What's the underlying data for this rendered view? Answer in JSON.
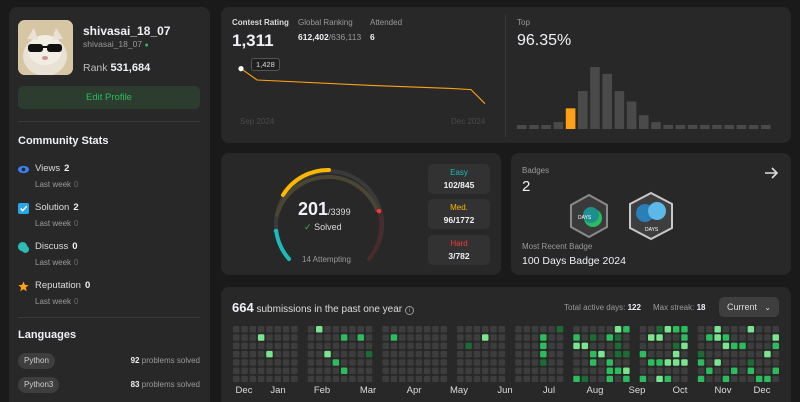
{
  "profile": {
    "username": "shivasai_18_07",
    "handle": "shivasai_18_07",
    "rank_label": "Rank",
    "rank_value": "531,684",
    "edit_label": "Edit Profile"
  },
  "community": {
    "title": "Community Stats",
    "items": [
      {
        "label": "Views",
        "value": "2",
        "sub": "Last week",
        "delta": "0",
        "icon": "eye-icon",
        "color": "#3b82f6"
      },
      {
        "label": "Solution",
        "value": "2",
        "sub": "Last week",
        "delta": "0",
        "icon": "solution-icon",
        "color": "#28a7e8"
      },
      {
        "label": "Discuss",
        "value": "0",
        "sub": "Last week",
        "delta": "0",
        "icon": "discuss-icon",
        "color": "#2cbbb5"
      },
      {
        "label": "Reputation",
        "value": "0",
        "sub": "Last week",
        "delta": "0",
        "icon": "star-icon",
        "color": "#ffa116"
      }
    ]
  },
  "languages": {
    "title": "Languages",
    "items": [
      {
        "name": "Python",
        "count": "92",
        "suffix": "problems solved"
      },
      {
        "name": "Python3",
        "count": "83",
        "suffix": "problems solved"
      }
    ]
  },
  "contest": {
    "rating_label": "Contest Rating",
    "rating_value": "1,311",
    "global_label": "Global Ranking",
    "global_value": "612,402",
    "global_total": "/636,113",
    "attended_label": "Attended",
    "attended_value": "6",
    "tooltip": "1,428",
    "x_start": "Sep 2024",
    "x_end": "Dec 2024",
    "top_label": "Top",
    "top_value": "96.35%"
  },
  "chart_data": {
    "type": "line",
    "title": "Contest Rating",
    "x": [
      "Sep 2024",
      "",
      "",
      "",
      "",
      "Dec 2024"
    ],
    "y": [
      1428,
      1390,
      1372,
      1362,
      1358,
      1311
    ],
    "series": [
      {
        "values": [
          1428,
          1390,
          1372,
          1362,
          1358,
          1311
        ]
      }
    ],
    "histogram": {
      "type": "bar",
      "values": [
        1,
        1,
        1,
        2,
        6,
        11,
        18,
        16,
        11,
        8,
        4,
        2,
        1,
        1,
        1,
        1,
        1,
        1,
        1,
        1,
        1
      ],
      "highlight_index": 4
    }
  },
  "progress": {
    "solved": "201",
    "total": "/3399",
    "solved_label": "Solved",
    "attempting": "14 Attempting",
    "easy_label": "Easy",
    "easy_value": "102/845",
    "med_label": "Med.",
    "med_value": "96/1772",
    "hard_label": "Hard",
    "hard_value": "3/782",
    "easy_color": "#1cbaba",
    "med_color": "#ffb700",
    "hard_color": "#f63737"
  },
  "badges": {
    "label": "Badges",
    "count": "2",
    "recent_label": "Most Recent Badge",
    "recent_name": "100 Days Badge 2024"
  },
  "calendar": {
    "count": "664",
    "text": "submissions in the past one year",
    "active_label": "Total active days:",
    "active_value": "122",
    "streak_label": "Max streak:",
    "streak_value": "18",
    "dropdown": "Current",
    "months": [
      "Dec",
      "Jan",
      "Feb",
      "Mar",
      "Apr",
      "May",
      "Jun",
      "Jul",
      "Aug",
      "Sep",
      "Oct",
      "Nov",
      "Dec"
    ]
  }
}
